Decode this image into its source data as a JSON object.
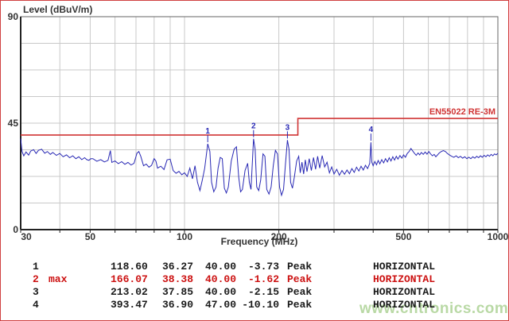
{
  "chart": {
    "title": "Level (dBuV/m)",
    "xaxis_title": "Frequency (MHz)",
    "limit_label": "EN55022 RE-3M",
    "colors": {
      "trace": "#2828b4",
      "limit": "#d03434",
      "grid": "#c9c9c9",
      "axis": "#222222",
      "box": "#666666",
      "text": "#333333",
      "highlight_red": "#cc1111",
      "watermark_green": "#b9d9a5"
    }
  },
  "chart_data": {
    "type": "line",
    "title": "Level (dBuV/m)",
    "xlabel": "Frequency (MHz)",
    "ylabel": "Level (dBuV/m)",
    "x_scale": "log",
    "xlim": [
      30,
      1000
    ],
    "ylim": [
      0,
      90
    ],
    "y_ticks": [
      90,
      45,
      0
    ],
    "x_ticks": [
      30,
      50,
      100,
      200,
      500,
      1000
    ],
    "x_gridlines": [
      30,
      40,
      50,
      60,
      70,
      80,
      90,
      100,
      200,
      300,
      400,
      500,
      600,
      700,
      800,
      900,
      1000
    ],
    "y_gridline_step": 11.25,
    "grid": true,
    "legend_position": "none",
    "limit_line": {
      "name": "EN55022 RE-3M",
      "points": [
        [
          30,
          40
        ],
        [
          230,
          40
        ],
        [
          230,
          47
        ],
        [
          1000,
          47
        ]
      ]
    },
    "markers": [
      {
        "n": "1",
        "freq": 118.6,
        "level": 36.27
      },
      {
        "n": "2",
        "freq": 166.07,
        "level": 38.38
      },
      {
        "n": "3",
        "freq": 213.02,
        "level": 37.85
      },
      {
        "n": "4",
        "freq": 393.47,
        "level": 36.9
      }
    ],
    "series": [
      {
        "name": "measured-emission-trace",
        "points": [
          [
            30,
            38.5
          ],
          [
            30.3,
            33
          ],
          [
            30.7,
            31.2
          ],
          [
            31.2,
            32.8
          ],
          [
            31.8,
            31.5
          ],
          [
            32.3,
            33.2
          ],
          [
            33,
            33.8
          ],
          [
            33.6,
            32.2
          ],
          [
            34.2,
            33.5
          ],
          [
            35,
            34
          ],
          [
            35.8,
            32.3
          ],
          [
            36.5,
            33
          ],
          [
            37.3,
            31.8
          ],
          [
            38,
            32.6
          ],
          [
            39,
            31.4
          ],
          [
            40,
            32.2
          ],
          [
            41,
            30.8
          ],
          [
            42,
            31.6
          ],
          [
            43,
            30.4
          ],
          [
            44,
            31.2
          ],
          [
            45,
            30
          ],
          [
            46,
            30.8
          ],
          [
            47,
            29.6
          ],
          [
            48,
            30.4
          ],
          [
            49.5,
            29.3
          ],
          [
            51,
            30
          ],
          [
            52.5,
            28.9
          ],
          [
            54,
            29.6
          ],
          [
            55.5,
            28.6
          ],
          [
            57,
            29.3
          ],
          [
            58,
            33.4
          ],
          [
            58.6,
            28.4
          ],
          [
            60,
            29
          ],
          [
            61.5,
            27.9
          ],
          [
            63,
            28.7
          ],
          [
            64.5,
            27.6
          ],
          [
            66,
            28.4
          ],
          [
            67.5,
            27.3
          ],
          [
            69,
            28
          ],
          [
            70.5,
            32.3
          ],
          [
            71.5,
            33
          ],
          [
            72.5,
            31
          ],
          [
            74,
            27
          ],
          [
            75.5,
            27.7
          ],
          [
            77,
            26.4
          ],
          [
            78.5,
            27.2
          ],
          [
            80,
            30
          ],
          [
            81,
            29
          ],
          [
            82,
            26
          ],
          [
            84,
            26.8
          ],
          [
            86,
            25.4
          ],
          [
            88,
            29.5
          ],
          [
            90,
            29.8
          ],
          [
            92,
            25
          ],
          [
            94,
            23.8
          ],
          [
            96,
            24.6
          ],
          [
            98,
            23.2
          ],
          [
            100,
            24
          ],
          [
            102,
            22.5
          ],
          [
            104,
            26
          ],
          [
            106,
            21.5
          ],
          [
            108,
            27
          ],
          [
            110,
            20
          ],
          [
            112,
            16.5
          ],
          [
            114,
            21
          ],
          [
            116,
            26
          ],
          [
            118.6,
            36.27
          ],
          [
            120.5,
            33
          ],
          [
            122,
            20
          ],
          [
            124,
            16
          ],
          [
            126,
            18
          ],
          [
            128,
            26
          ],
          [
            130,
            30.5
          ],
          [
            132,
            30
          ],
          [
            134,
            17.5
          ],
          [
            136,
            15.5
          ],
          [
            138,
            18
          ],
          [
            141,
            29
          ],
          [
            144,
            34
          ],
          [
            146.5,
            35
          ],
          [
            149,
            22
          ],
          [
            151,
            16
          ],
          [
            153,
            17
          ],
          [
            156,
            25
          ],
          [
            159,
            28
          ],
          [
            161,
            20
          ],
          [
            163,
            17
          ],
          [
            166.07,
            38.38
          ],
          [
            168,
            34
          ],
          [
            170,
            18
          ],
          [
            172.5,
            16.5
          ],
          [
            175,
            21
          ],
          [
            178,
            32
          ],
          [
            180.5,
            31
          ],
          [
            183,
            17
          ],
          [
            186,
            15
          ],
          [
            189,
            18
          ],
          [
            192,
            27
          ],
          [
            195,
            33.5
          ],
          [
            198,
            32
          ],
          [
            201,
            18
          ],
          [
            204,
            14.5
          ],
          [
            207,
            17
          ],
          [
            210,
            28
          ],
          [
            213.02,
            37.85
          ],
          [
            215.5,
            34
          ],
          [
            218,
            20
          ],
          [
            221,
            17.5
          ],
          [
            224,
            22
          ],
          [
            228,
            29
          ],
          [
            231.5,
            31
          ],
          [
            234,
            24
          ],
          [
            237,
            28.5
          ],
          [
            240,
            23.5
          ],
          [
            243,
            29.5
          ],
          [
            246,
            24.5
          ],
          [
            250,
            30
          ],
          [
            254,
            25
          ],
          [
            258,
            30.5
          ],
          [
            262,
            25.5
          ],
          [
            266,
            31
          ],
          [
            270,
            26
          ],
          [
            275,
            31.3
          ],
          [
            280,
            26.5
          ],
          [
            285,
            28.5
          ],
          [
            290,
            24
          ],
          [
            295,
            26.5
          ],
          [
            300,
            23.5
          ],
          [
            306,
            25.5
          ],
          [
            312,
            23
          ],
          [
            318,
            25
          ],
          [
            324,
            23.4
          ],
          [
            330,
            25.2
          ],
          [
            336,
            23.6
          ],
          [
            342,
            25.8
          ],
          [
            348,
            24.2
          ],
          [
            354,
            26.4
          ],
          [
            360,
            24.8
          ],
          [
            366,
            26.8
          ],
          [
            372,
            25.2
          ],
          [
            378,
            27.2
          ],
          [
            384,
            25.8
          ],
          [
            390,
            28
          ],
          [
            393.47,
            36.9
          ],
          [
            396,
            28.5
          ],
          [
            400,
            27
          ],
          [
            405,
            28.8
          ],
          [
            410,
            27.4
          ],
          [
            415,
            29.2
          ],
          [
            420,
            27.8
          ],
          [
            426,
            29.6
          ],
          [
            432,
            28.2
          ],
          [
            438,
            30
          ],
          [
            444,
            28.6
          ],
          [
            450,
            30.4
          ],
          [
            456,
            29
          ],
          [
            462,
            30.8
          ],
          [
            468,
            29.4
          ],
          [
            474,
            31
          ],
          [
            480,
            29.8
          ],
          [
            487,
            31.3
          ],
          [
            494,
            30.2
          ],
          [
            500,
            31.6
          ],
          [
            507,
            30.6
          ],
          [
            514,
            32.2
          ],
          [
            521,
            33
          ],
          [
            528,
            34.3
          ],
          [
            535,
            33.2
          ],
          [
            542,
            32.2
          ],
          [
            549,
            31.4
          ],
          [
            556,
            32.4
          ],
          [
            563,
            31.6
          ],
          [
            570,
            32.6
          ],
          [
            578,
            31.8
          ],
          [
            586,
            32.8
          ],
          [
            594,
            31.9
          ],
          [
            602,
            33
          ],
          [
            610,
            32
          ],
          [
            618,
            31.2
          ],
          [
            626,
            31.8
          ],
          [
            634,
            30.8
          ],
          [
            642,
            31.6
          ],
          [
            650,
            32.4
          ],
          [
            660,
            33
          ],
          [
            670,
            33.4
          ],
          [
            680,
            33
          ],
          [
            690,
            32.2
          ],
          [
            700,
            31.6
          ],
          [
            712,
            31
          ],
          [
            724,
            30.6
          ],
          [
            736,
            31.2
          ],
          [
            748,
            30.4
          ],
          [
            760,
            31
          ],
          [
            772,
            30.2
          ],
          [
            784,
            30.8
          ],
          [
            796,
            30
          ],
          [
            808,
            30.6
          ],
          [
            820,
            30
          ],
          [
            832,
            30.8
          ],
          [
            844,
            30.2
          ],
          [
            856,
            31
          ],
          [
            868,
            30.4
          ],
          [
            880,
            31.2
          ],
          [
            892,
            30.6
          ],
          [
            904,
            31.4
          ],
          [
            916,
            30.8
          ],
          [
            928,
            31.6
          ],
          [
            940,
            31
          ],
          [
            952,
            31.8
          ],
          [
            964,
            31.2
          ],
          [
            976,
            32
          ],
          [
            988,
            31.6
          ],
          [
            1000,
            32.3
          ]
        ]
      }
    ]
  },
  "table": {
    "rows": [
      {
        "num": "1",
        "tag": "",
        "freq": "118.60",
        "level": "36.27",
        "limit": "40.00",
        "margin": "-3.73",
        "detector": "Peak",
        "polarization": "HORIZONTAL",
        "highlight": false
      },
      {
        "num": "2",
        "tag": "max",
        "freq": "166.07",
        "level": "38.38",
        "limit": "40.00",
        "margin": "-1.62",
        "detector": "Peak",
        "polarization": "HORIZONTAL",
        "highlight": true
      },
      {
        "num": "3",
        "tag": "",
        "freq": "213.02",
        "level": "37.85",
        "limit": "40.00",
        "margin": "-2.15",
        "detector": "Peak",
        "polarization": "HORIZONTAL",
        "highlight": false
      },
      {
        "num": "4",
        "tag": "",
        "freq": "393.47",
        "level": "36.90",
        "limit": "47.00",
        "margin": "-10.10",
        "detector": "Peak",
        "polarization": "HORIZONTAL",
        "highlight": false
      }
    ]
  },
  "watermark": "www.cntronics.com"
}
